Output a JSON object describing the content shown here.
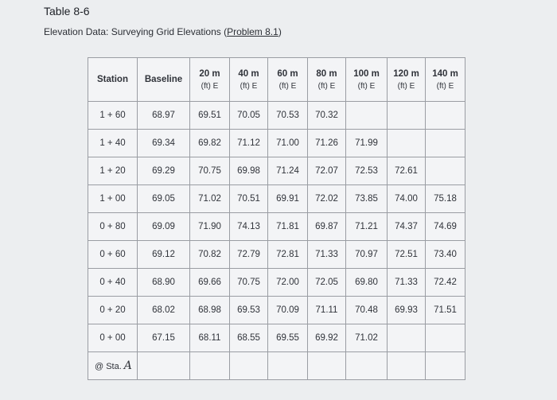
{
  "title": "Table 8-6",
  "subtitle": {
    "prefix": "Elevation Data: Surveying Grid Elevations (",
    "link": "Problem 8.1",
    "suffix": ")"
  },
  "table": {
    "headers": [
      {
        "label": "Station",
        "unit": ""
      },
      {
        "label": "Baseline",
        "unit": ""
      },
      {
        "label": "20 m",
        "unit": "(ft) E"
      },
      {
        "label": "40 m",
        "unit": "(ft) E"
      },
      {
        "label": "60 m",
        "unit": "(ft) E"
      },
      {
        "label": "80 m",
        "unit": "(ft) E"
      },
      {
        "label": "100 m",
        "unit": "(ft) E"
      },
      {
        "label": "120 m",
        "unit": "(ft) E"
      },
      {
        "label": "140 m",
        "unit": "(ft) E"
      }
    ],
    "rows": [
      [
        "1 + 60",
        "68.97",
        "69.51",
        "70.05",
        "70.53",
        "70.32",
        "",
        "",
        ""
      ],
      [
        "1 + 40",
        "69.34",
        "69.82",
        "71.12",
        "71.00",
        "71.26",
        "71.99",
        "",
        ""
      ],
      [
        "1 + 20",
        "69.29",
        "70.75",
        "69.98",
        "71.24",
        "72.07",
        "72.53",
        "72.61",
        ""
      ],
      [
        "1 + 00",
        "69.05",
        "71.02",
        "70.51",
        "69.91",
        "72.02",
        "73.85",
        "74.00",
        "75.18"
      ],
      [
        "0 + 80",
        "69.09",
        "71.90",
        "74.13",
        "71.81",
        "69.87",
        "71.21",
        "74.37",
        "74.69"
      ],
      [
        "0 + 60",
        "69.12",
        "70.82",
        "72.79",
        "72.81",
        "71.33",
        "70.97",
        "72.51",
        "73.40"
      ],
      [
        "0 + 40",
        "68.90",
        "69.66",
        "70.75",
        "72.00",
        "72.05",
        "69.80",
        "71.33",
        "72.42"
      ],
      [
        "0 + 20",
        "68.02",
        "68.98",
        "69.53",
        "70.09",
        "71.11",
        "70.48",
        "69.93",
        "71.51"
      ],
      [
        "0 + 00",
        "67.15",
        "68.11",
        "68.55",
        "69.55",
        "69.92",
        "71.02",
        "",
        ""
      ]
    ],
    "footer_row": {
      "label": "@ Sta.",
      "mark": "A"
    }
  }
}
